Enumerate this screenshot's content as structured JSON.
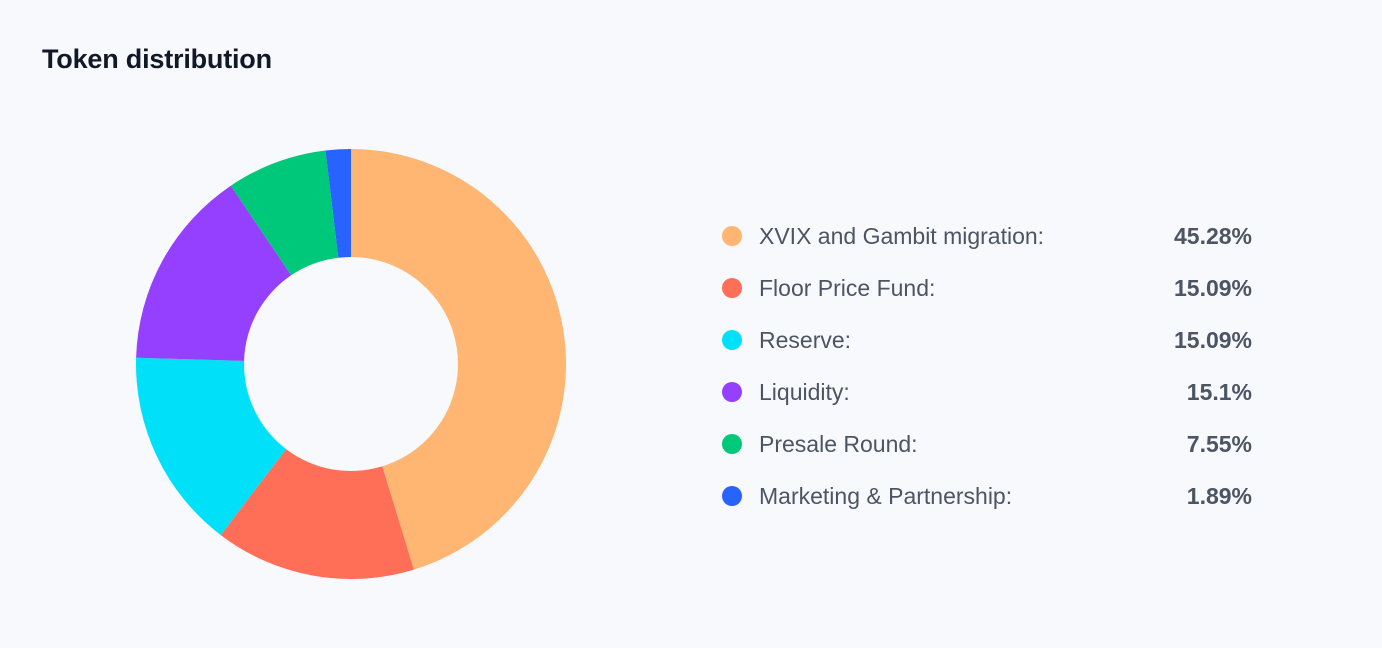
{
  "chart_data": {
    "type": "pie",
    "title": "Token distribution",
    "categories": [
      "XVIX and Gambit migration:",
      "Floor Price Fund:",
      "Reserve:",
      "Liquidity:",
      "Presale Round:",
      "Marketing & Partnership:"
    ],
    "values": [
      45.28,
      15.09,
      15.09,
      15.1,
      7.55,
      1.89
    ],
    "value_labels": [
      "45.28%",
      "15.09%",
      "15.09%",
      "15.1%",
      "7.55%",
      "1.89%"
    ],
    "colors": [
      "#ffb672",
      "#ff6e57",
      "#00e1f9",
      "#9540ff",
      "#00c87a",
      "#2862ff"
    ],
    "legend": "right"
  }
}
